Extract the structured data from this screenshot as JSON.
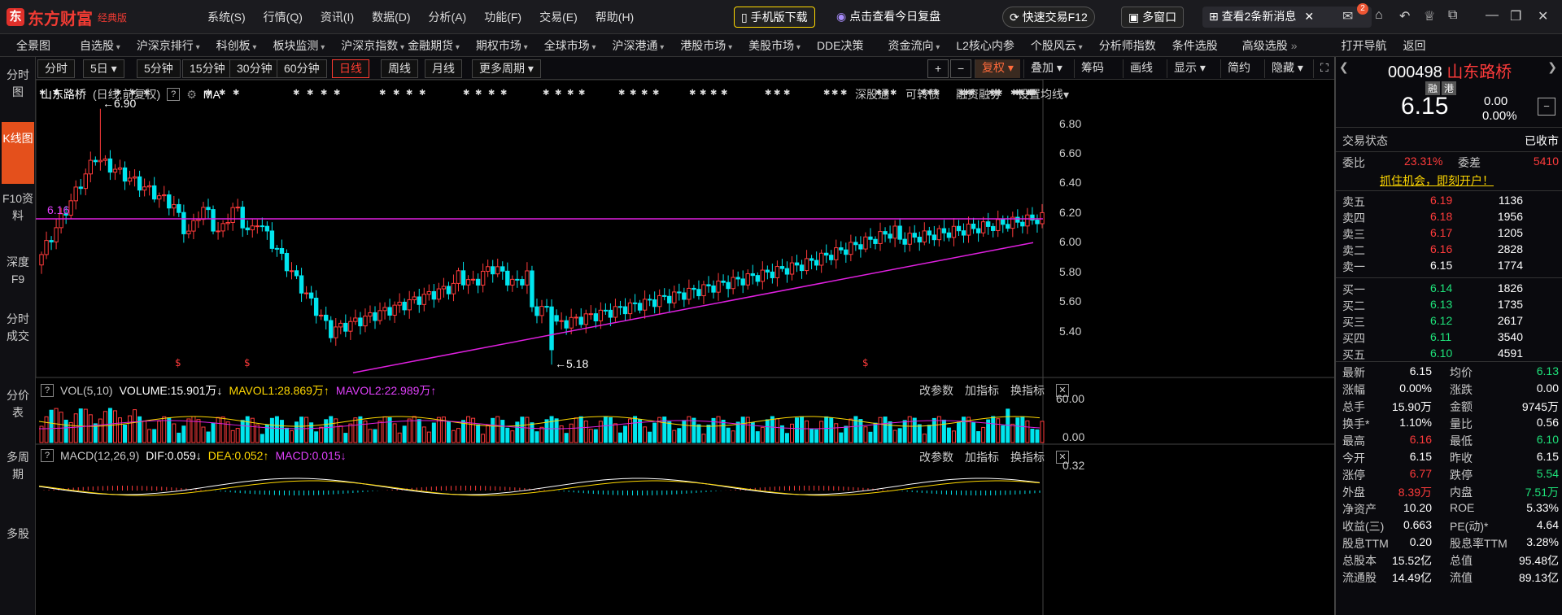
{
  "app": {
    "logo_text": "东方财富",
    "edition": "经典版"
  },
  "main_menu": [
    "系统(S)",
    "行情(Q)",
    "资讯(I)",
    "数据(D)",
    "分析(A)",
    "功能(F)",
    "交易(E)",
    "帮助(H)"
  ],
  "top_buttons": {
    "mobile": "手机版下载",
    "replay": "点击查看今日复盘",
    "quick_trade": "快速交易F12",
    "multi_window": "多窗口",
    "news": "查看2条新消息",
    "mail_badge": "2"
  },
  "nav": [
    "全景图",
    "自选股",
    "沪深京排行",
    "科创板",
    "板块监测",
    "沪深京指数",
    "金融期货",
    "期权市场",
    "全球市场",
    "沪深港通",
    "港股市场",
    "美股市场",
    "DDE决策",
    "资金流向",
    "L2核心内参",
    "个股风云",
    "分析师指数",
    "条件选股",
    "高级选股",
    "打开导航",
    "返回"
  ],
  "side_tabs": [
    "分时图",
    "K线图",
    "F10资料",
    "深度F9",
    "分时成交",
    "分价表",
    "多周期",
    "多股"
  ],
  "periods": [
    "分时",
    "5日",
    "5分钟",
    "15分钟",
    "30分钟",
    "60分钟",
    "日线",
    "周线",
    "月线",
    "更多周期"
  ],
  "tools": [
    "复权",
    "叠加",
    "筹码",
    "画线",
    "显示",
    "简约",
    "隐藏"
  ],
  "chart": {
    "title": "山东路桥",
    "subtitle": "(日线,前复权)",
    "ma": "MA",
    "links": [
      "深股通",
      "可转债",
      "融资融券",
      "设置均线"
    ],
    "high_label": "6.90",
    "low_label": "5.18",
    "hline_label": "6.16",
    "y_ticks": [
      "6.80",
      "6.60",
      "6.40",
      "6.20",
      "6.00",
      "5.80",
      "5.60",
      "5.40"
    ]
  },
  "vol": {
    "title": "VOL(5,10)",
    "volume": "VOLUME:15.901万",
    "mavol1": "MAVOL1:28.869万",
    "mavol2": "MAVOL2:22.989万",
    "ticks": [
      "60.00",
      "0.00"
    ],
    "actions": [
      "改参数",
      "加指标",
      "换指标"
    ]
  },
  "macd": {
    "title": "MACD(12,26,9)",
    "dif": "DIF:0.059",
    "dea": "DEA:0.052",
    "macd": "MACD:0.015",
    "tick": "0.32",
    "actions": [
      "改参数",
      "加指标",
      "换指标"
    ]
  },
  "quote": {
    "code": "000498",
    "name": "山东路桥",
    "price": "6.15",
    "chg": "0.00",
    "pct": "0.00%",
    "tag1": "融",
    "tag2": "港",
    "status_label": "交易状态",
    "status_value": "已收市",
    "weibi_label": "委比",
    "weibi": "23.31%",
    "weicha_label": "委差",
    "weicha": "5410",
    "promo": "抓住机会，即刻开户！",
    "asks": [
      [
        "卖五",
        "6.19",
        "1136"
      ],
      [
        "卖四",
        "6.18",
        "1956"
      ],
      [
        "卖三",
        "6.17",
        "1205"
      ],
      [
        "卖二",
        "6.16",
        "2828"
      ],
      [
        "卖一",
        "6.15",
        "1774"
      ]
    ],
    "bids": [
      [
        "买一",
        "6.14",
        "1826"
      ],
      [
        "买二",
        "6.13",
        "1735"
      ],
      [
        "买三",
        "6.12",
        "2617"
      ],
      [
        "买四",
        "6.11",
        "3540"
      ],
      [
        "买五",
        "6.10",
        "4591"
      ]
    ],
    "stats": [
      [
        "最新",
        "6.15",
        "均价",
        "6.13"
      ],
      [
        "涨幅",
        "0.00%",
        "涨跌",
        "0.00"
      ],
      [
        "总手",
        "15.90万",
        "金额",
        "9745万"
      ],
      [
        "换手*",
        "1.10%",
        "量比",
        "0.56"
      ],
      [
        "最高",
        "6.16",
        "最低",
        "6.10"
      ],
      [
        "今开",
        "6.15",
        "昨收",
        "6.15"
      ],
      [
        "涨停",
        "6.77",
        "跌停",
        "5.54"
      ],
      [
        "外盘",
        "8.39万",
        "内盘",
        "7.51万"
      ],
      [
        "净资产",
        "10.20",
        "ROE",
        "5.33%"
      ],
      [
        "收益(三)",
        "0.663",
        "PE(动)*",
        "4.64"
      ],
      [
        "股息TTM",
        "0.20",
        "股息率TTM",
        "3.28%"
      ],
      [
        "总股本",
        "15.52亿",
        "总值",
        "95.48亿"
      ],
      [
        "流通股",
        "14.49亿",
        "流值",
        "89.13亿"
      ]
    ]
  },
  "colors": {
    "up": "#ff3b3b",
    "down": "#00e5ee",
    "line": "#e020e0",
    "bg": "#000000"
  }
}
